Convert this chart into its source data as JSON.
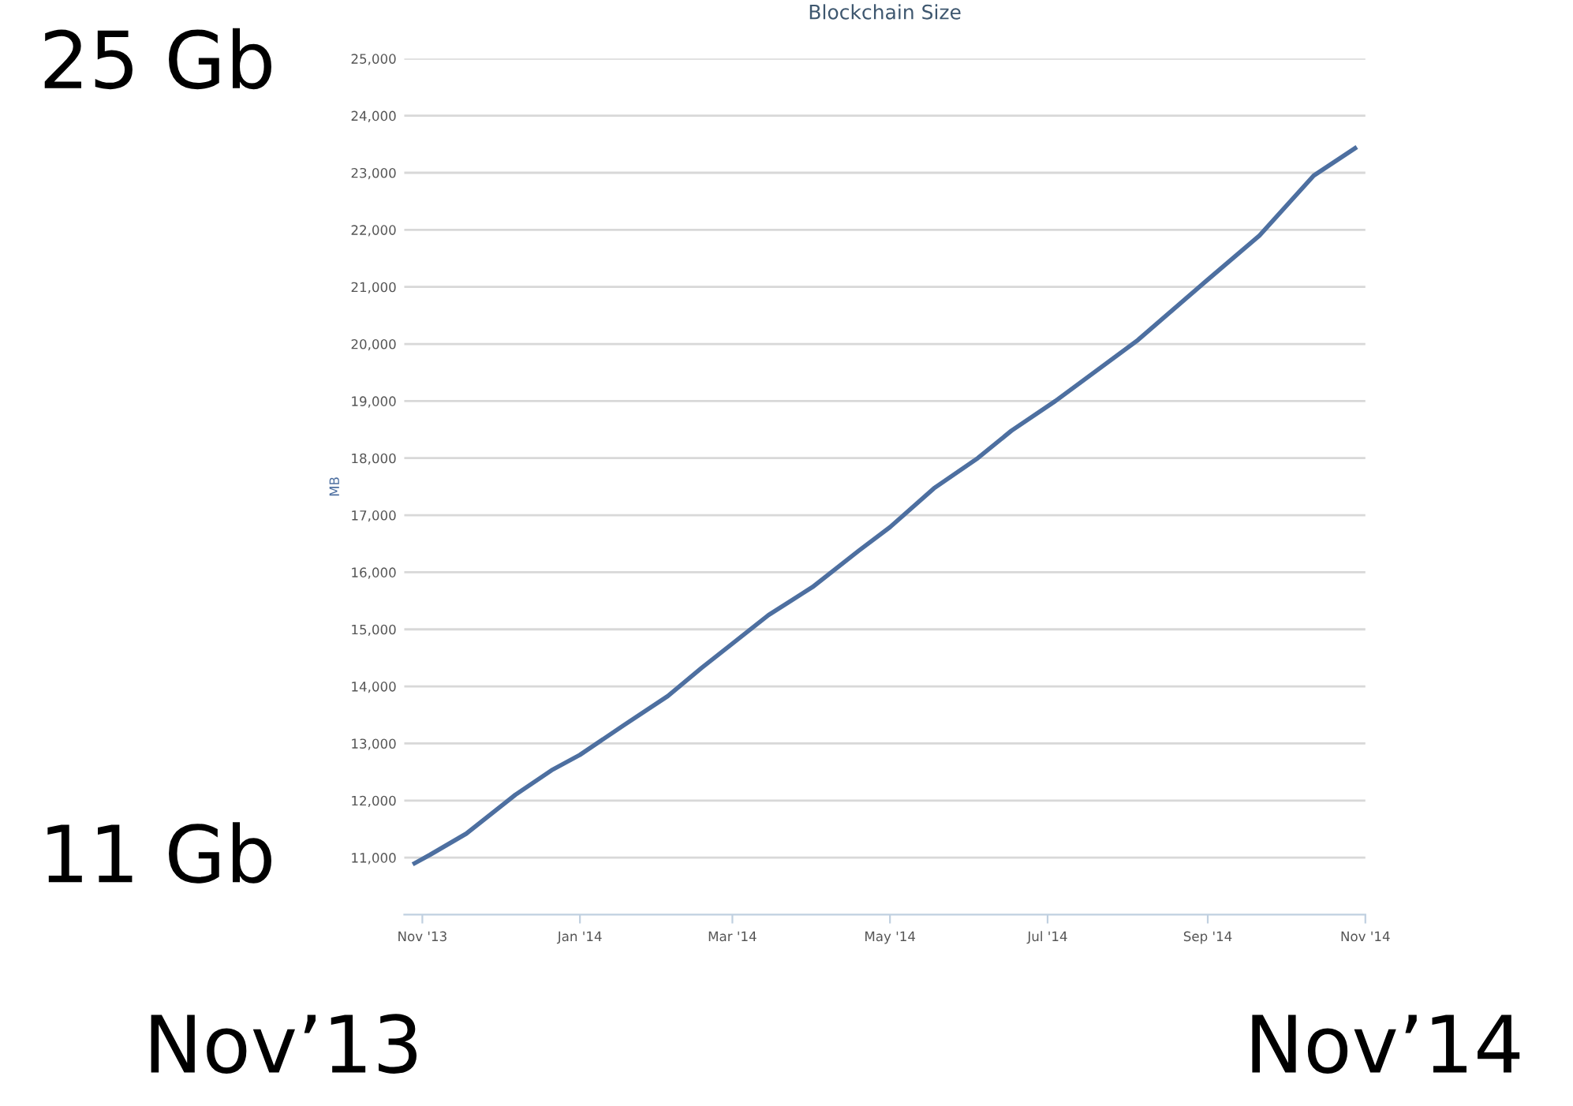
{
  "chart_data": {
    "type": "line",
    "title": "Blockchain Size",
    "ylabel": "MB",
    "annotations": [
      "25 Gb",
      "11 Gb",
      "Nov’13",
      "Nov’14"
    ],
    "x": [
      "2013-10-29",
      "2013-11-04",
      "2013-11-18",
      "2013-12-07",
      "2013-12-21",
      "2014-01-01",
      "2014-01-18",
      "2014-02-04",
      "2014-02-17",
      "2014-03-01",
      "2014-03-15",
      "2014-04-01",
      "2014-04-19",
      "2014-05-01",
      "2014-05-18",
      "2014-06-04",
      "2014-06-17",
      "2014-07-04",
      "2014-08-05",
      "2014-08-30",
      "2014-09-21",
      "2014-10-12",
      "2014-10-28"
    ],
    "series": [
      {
        "color": "#4d6fa0",
        "values": [
          10900,
          11050,
          11420,
          12100,
          12530,
          12800,
          13320,
          13830,
          14320,
          14750,
          15250,
          15740,
          16380,
          16790,
          17470,
          18000,
          18480,
          19000,
          20070,
          21050,
          21900,
          22950,
          23430
        ]
      }
    ],
    "xlim": [
      "2013-10-25",
      "2014-11-01"
    ],
    "xticks": [
      {
        "value": "2013-11-01",
        "label": "Nov '13"
      },
      {
        "value": "2014-01-01",
        "label": "Jan '14"
      },
      {
        "value": "2014-03-01",
        "label": "Mar '14"
      },
      {
        "value": "2014-05-01",
        "label": "May '14"
      },
      {
        "value": "2014-07-01",
        "label": "Jul '14"
      },
      {
        "value": "2014-09-01",
        "label": "Sep '14"
      },
      {
        "value": "2014-11-01",
        "label": "Nov '14"
      }
    ],
    "ylim": [
      10000,
      25000
    ],
    "yticks": [
      {
        "value": 11000,
        "label": "11,000"
      },
      {
        "value": 12000,
        "label": "12,000"
      },
      {
        "value": 13000,
        "label": "13,000"
      },
      {
        "value": 14000,
        "label": "14,000"
      },
      {
        "value": 15000,
        "label": "15,000"
      },
      {
        "value": 16000,
        "label": "16,000"
      },
      {
        "value": 17000,
        "label": "17,000"
      },
      {
        "value": 18000,
        "label": "18,000"
      },
      {
        "value": 19000,
        "label": "19,000"
      },
      {
        "value": 20000,
        "label": "20,000"
      },
      {
        "value": 21000,
        "label": "21,000"
      },
      {
        "value": 22000,
        "label": "22,000"
      },
      {
        "value": 23000,
        "label": "23,000"
      },
      {
        "value": 24000,
        "label": "24,000"
      },
      {
        "value": 25000,
        "label": "25,000"
      }
    ],
    "grid": "y",
    "legend": false,
    "marker": "none",
    "line_style": "solid"
  }
}
